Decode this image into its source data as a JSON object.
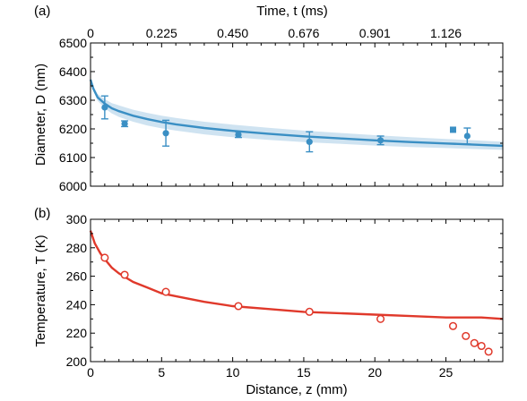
{
  "chart_data": [
    {
      "type": "line",
      "panel_label": "(a)",
      "top_axis": {
        "label": "Time, t (ms)",
        "ticks": [
          "0",
          "0.225",
          "0.450",
          "0.676",
          "0.901",
          "1.126"
        ],
        "positions_z": [
          0,
          5,
          10,
          15,
          20,
          25
        ]
      },
      "xlabel": "",
      "ylabel": "Diameter, D (nm)",
      "xlim": [
        0,
        29
      ],
      "ylim": [
        6000,
        6500
      ],
      "yticks": [
        6000,
        6100,
        6200,
        6300,
        6400,
        6500
      ],
      "series": [
        {
          "kind": "points_with_error",
          "color": "#3a8fc4",
          "x": [
            1.0,
            2.4,
            5.3,
            10.4,
            15.4,
            20.4,
            26.5
          ],
          "y": [
            6275,
            6218,
            6185,
            6180,
            6155,
            6160,
            6175
          ],
          "err": [
            40,
            10,
            45,
            10,
            35,
            15,
            28
          ]
        },
        {
          "kind": "square_marker",
          "color": "#3a8fc4",
          "x": [
            25.5
          ],
          "y": [
            6197
          ]
        },
        {
          "kind": "fit_line",
          "color": "#3a8fc4",
          "band_color": "#cfe3f1",
          "x": [
            0,
            0.2,
            0.5,
            1,
            1.5,
            2,
            3,
            4,
            5,
            6,
            8,
            10,
            12.5,
            15,
            17.5,
            20,
            22.5,
            25,
            27.5,
            29
          ],
          "y": [
            6372,
            6340,
            6310,
            6288,
            6272,
            6262,
            6246,
            6234,
            6224,
            6216,
            6203,
            6193,
            6183,
            6174,
            6167,
            6160,
            6154,
            6149,
            6144,
            6141
          ],
          "band": [
            0,
            8,
            12,
            16,
            18,
            20,
            21,
            22,
            22,
            22,
            22,
            22,
            21,
            20,
            19,
            18,
            17,
            16,
            15,
            14
          ]
        }
      ]
    },
    {
      "type": "line",
      "panel_label": "(b)",
      "xlabel": "Distance, z (mm)",
      "ylabel": "Temperature, T (K)",
      "xlim": [
        0,
        29
      ],
      "ylim": [
        200,
        300
      ],
      "xticks": [
        0,
        5,
        10,
        15,
        20,
        25
      ],
      "yticks": [
        200,
        220,
        240,
        260,
        280,
        300
      ],
      "series": [
        {
          "kind": "open_circles",
          "color": "#e0392b",
          "x": [
            1.0,
            2.4,
            5.3,
            10.4,
            15.4,
            20.4,
            25.5,
            26.4,
            27.0,
            27.5,
            28.0
          ],
          "y": [
            273,
            261,
            249,
            239,
            235,
            230,
            225,
            218,
            213,
            211,
            207
          ]
        },
        {
          "kind": "fit_line",
          "color": "#e0392b",
          "x": [
            0,
            0.3,
            0.7,
            1,
            1.5,
            2,
            3,
            4,
            5,
            6,
            8,
            10,
            12.5,
            15,
            17.5,
            20,
            22.5,
            25,
            27.5,
            29
          ],
          "y": [
            292,
            283,
            276,
            272,
            266,
            262,
            256,
            252,
            248,
            246,
            242,
            239,
            237,
            235,
            234,
            233,
            232,
            231,
            231,
            230
          ]
        }
      ]
    }
  ]
}
